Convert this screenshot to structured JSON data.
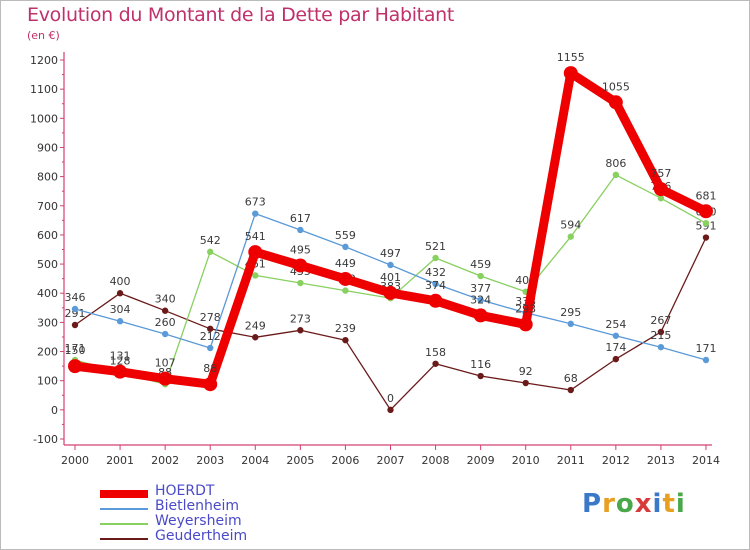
{
  "title": "Evolution du Montant de la Dette par Habitant",
  "subtitle": "(en €)",
  "logo": {
    "letters": [
      {
        "ch": "P",
        "color": "#3a78c8"
      },
      {
        "ch": "r",
        "color": "#e8a020"
      },
      {
        "ch": "o",
        "color": "#4aa84a"
      },
      {
        "ch": "x",
        "color": "#d83a3a"
      },
      {
        "ch": "i",
        "color": "#3a78c8"
      },
      {
        "ch": "t",
        "color": "#e8a020"
      },
      {
        "ch": "i",
        "color": "#4aa84a"
      }
    ]
  },
  "chart_data": {
    "type": "line",
    "title": "Evolution du Montant de la Dette par Habitant",
    "subtitle": "(en €)",
    "categories": [
      "2000",
      "2001",
      "2002",
      "2003",
      "2004",
      "2005",
      "2006",
      "2007",
      "2008",
      "2009",
      "2010",
      "2011",
      "2012",
      "2013",
      "2014"
    ],
    "yticks": [
      "-100",
      "0",
      "100",
      "200",
      "300",
      "400",
      "500",
      "600",
      "700",
      "800",
      "900",
      "1000",
      "1100",
      "1200"
    ],
    "ylim": [
      -100,
      1200
    ],
    "grid": false,
    "legend_position": "bottom-left",
    "series": [
      {
        "name": "Geudertheim",
        "color": "#6b1a1a",
        "style": "thin",
        "values": [
          291,
          400,
          340,
          278,
          249,
          273,
          239,
          0,
          158,
          116,
          92,
          68,
          174,
          267,
          591
        ]
      },
      {
        "name": "Weyersheim",
        "color": "#88d060",
        "style": "thin",
        "values": [
          171,
          128,
          88,
          542,
          461,
          435,
          409,
          383,
          521,
          459,
          405,
          594,
          806,
          726,
          640
        ]
      },
      {
        "name": "Bietlenheim",
        "color": "#5a9ad8",
        "style": "thin",
        "values": [
          346,
          304,
          260,
          212,
          673,
          617,
          559,
          497,
          432,
          377,
          333,
          295,
          254,
          215,
          171
        ]
      },
      {
        "name": "HOERDT",
        "color": "#ee0000",
        "style": "thick",
        "values": [
          150,
          131,
          107,
          88,
          541,
          495,
          449,
          401,
          374,
          324,
          293,
          1155,
          1055,
          757,
          681
        ]
      }
    ],
    "legend": [
      "HOERDT",
      "Bietlenheim",
      "Weyersheim",
      "Geudertheim"
    ]
  }
}
